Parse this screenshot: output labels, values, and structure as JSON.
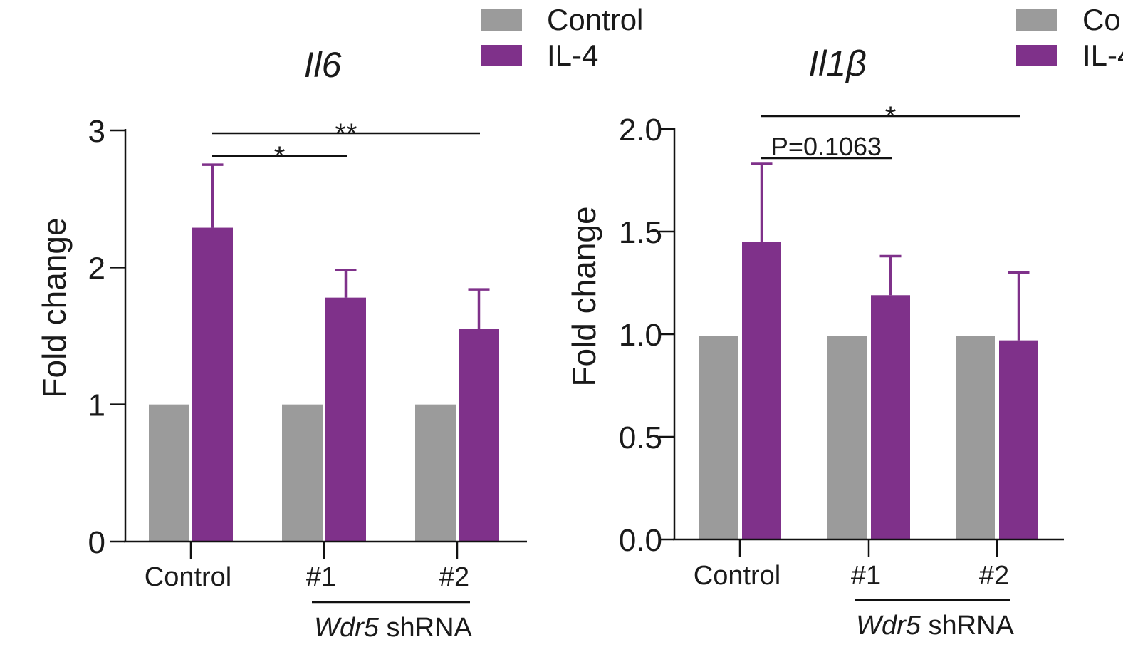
{
  "colors": {
    "control": "#9b9b9b",
    "il4": "#7f318a",
    "axis": "#111111"
  },
  "chart_data": [
    {
      "type": "bar",
      "title": "Il6",
      "ylabel": "Fold change",
      "xlabel": "",
      "ylim": [
        0,
        3
      ],
      "yticks": [
        "0",
        "1",
        "2",
        "3"
      ],
      "categories": [
        "Control",
        "#1",
        "#2"
      ],
      "group_label_italic": "Wdr5",
      "group_label_rest": " shRNA",
      "legend": [
        "Control",
        "IL-4"
      ],
      "series": [
        {
          "name": "Control",
          "values": [
            1.0,
            1.0,
            1.0
          ],
          "errors": [
            0,
            0,
            0
          ]
        },
        {
          "name": "IL-4",
          "values": [
            2.29,
            1.78,
            1.55
          ],
          "errors": [
            0.46,
            0.2,
            0.29
          ]
        }
      ],
      "significance": [
        {
          "label": "*",
          "from": 0,
          "to": 1
        },
        {
          "label": "**",
          "from": 0,
          "to": 2
        }
      ]
    },
    {
      "type": "bar",
      "title": "Il1β",
      "ylabel": "Fold change",
      "xlabel": "",
      "ylim": [
        0,
        2.0
      ],
      "yticks": [
        "0.0",
        "0.5",
        "1.0",
        "1.5",
        "2.0"
      ],
      "categories": [
        "Control",
        "#1",
        "#2"
      ],
      "group_label_italic": "Wdr5",
      "group_label_rest": " shRNA",
      "legend": [
        "Co",
        "IL-4"
      ],
      "series": [
        {
          "name": "Control",
          "values": [
            0.99,
            0.99,
            0.99
          ],
          "errors": [
            0,
            0,
            0
          ]
        },
        {
          "name": "IL-4",
          "values": [
            1.45,
            1.19,
            0.97
          ],
          "errors": [
            0.38,
            0.19,
            0.33
          ]
        }
      ],
      "significance": [
        {
          "label": "P=0.1063",
          "from": 0,
          "to": 1
        },
        {
          "label": "*",
          "from": 0,
          "to": 2
        }
      ]
    }
  ]
}
